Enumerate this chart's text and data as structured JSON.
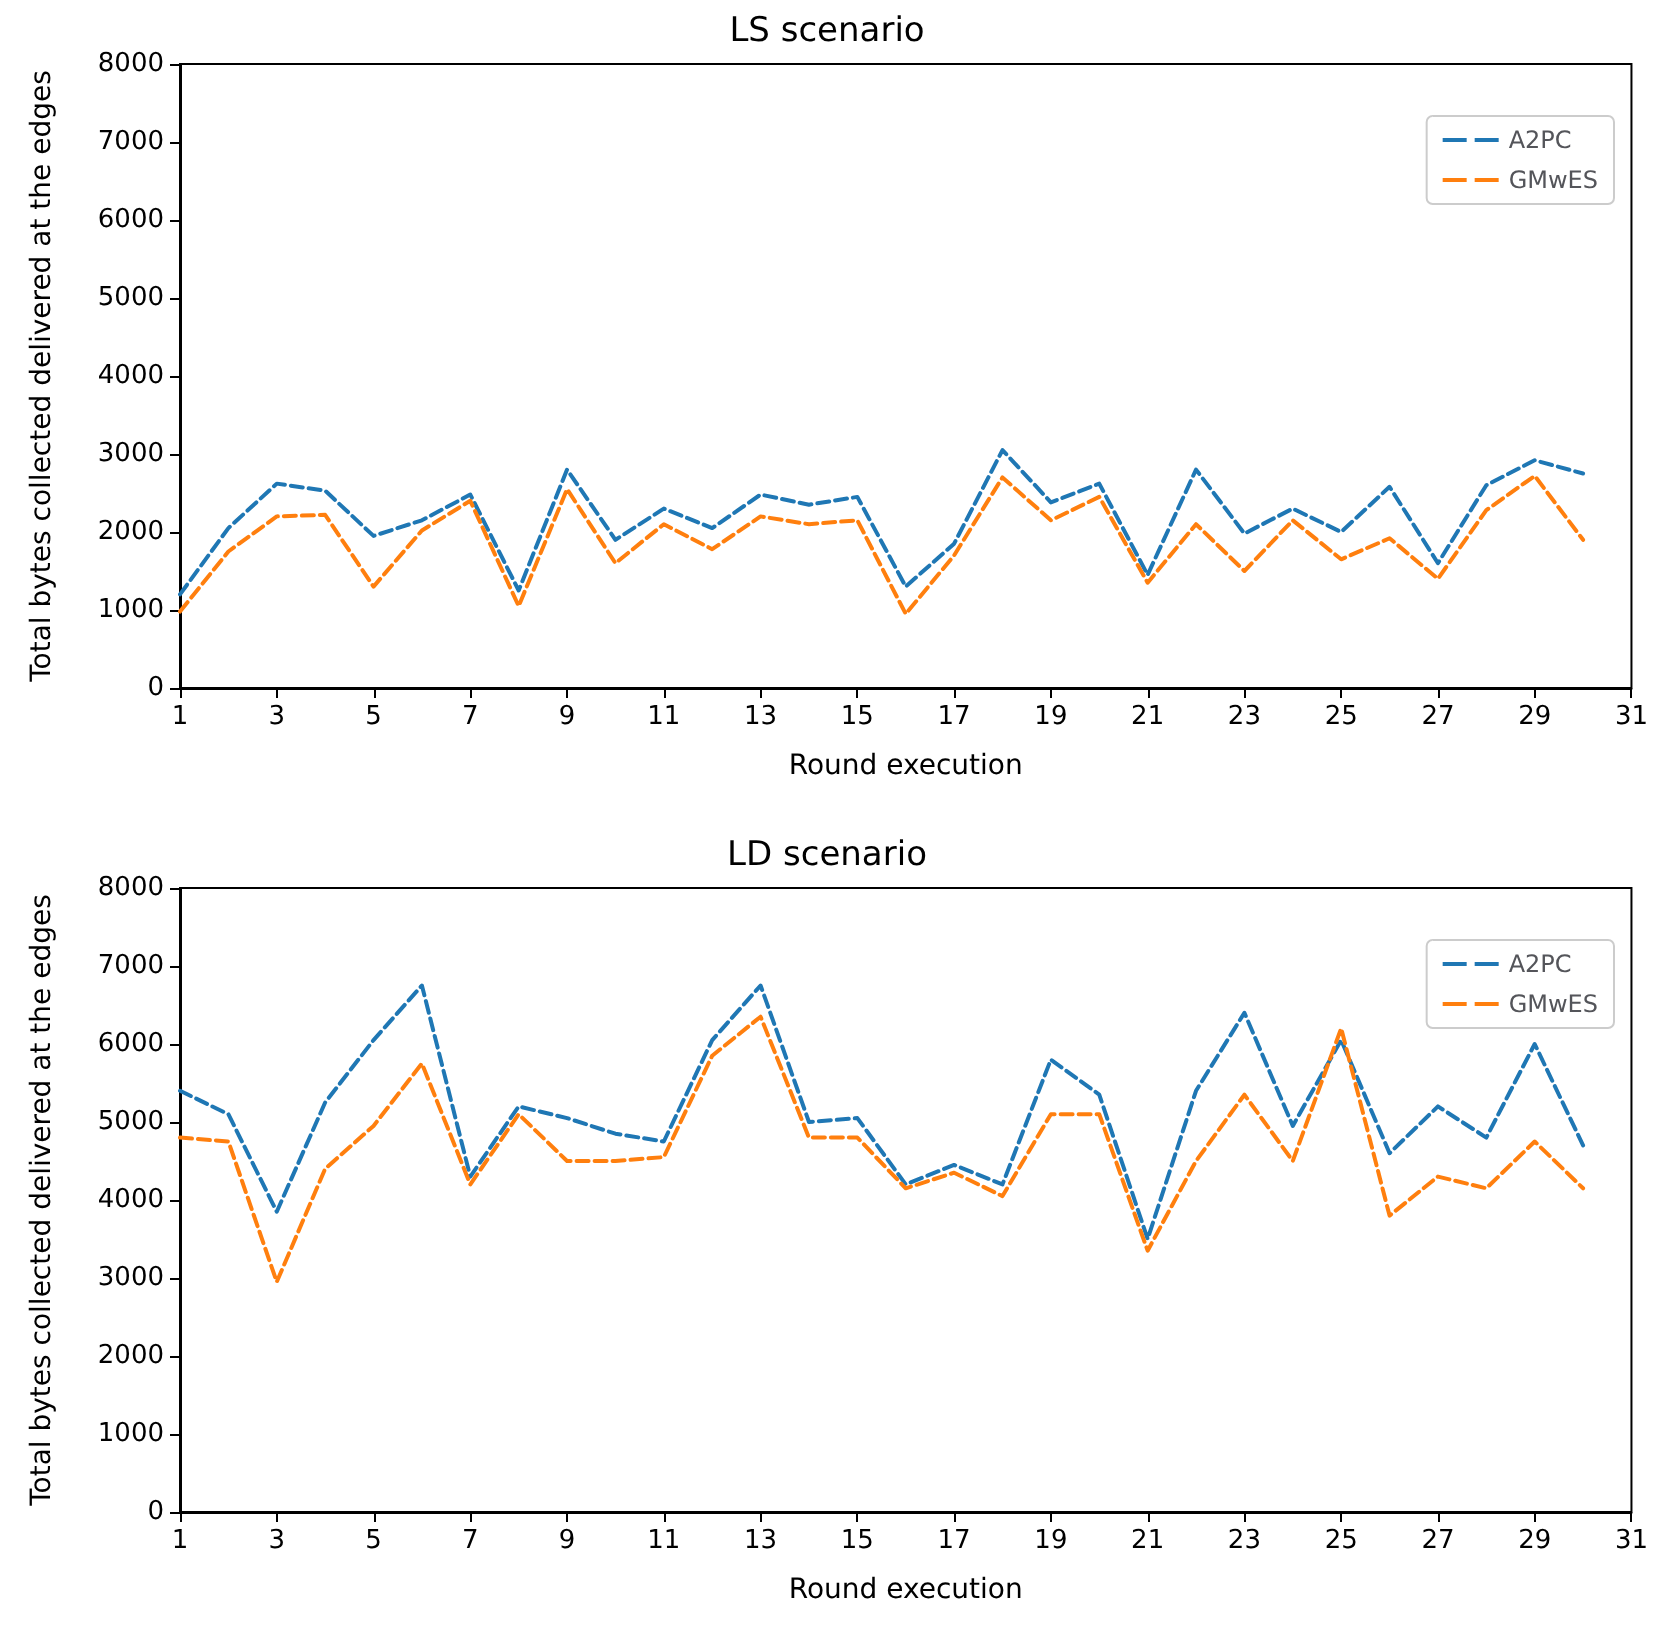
{
  "chart_data": [
    {
      "type": "line",
      "title": "LS scenario",
      "xlabel": "Round execution",
      "ylabel": "Total bytes collected delivered at the edges",
      "x": [
        1,
        2,
        3,
        4,
        5,
        6,
        7,
        8,
        9,
        10,
        11,
        12,
        13,
        14,
        15,
        16,
        17,
        18,
        19,
        20,
        21,
        22,
        23,
        24,
        25,
        26,
        27,
        28,
        29,
        30
      ],
      "xlim": [
        1,
        31
      ],
      "xticks": [
        1,
        3,
        5,
        7,
        9,
        11,
        13,
        15,
        17,
        19,
        21,
        23,
        25,
        27,
        29,
        31
      ],
      "ylim": [
        0,
        8000
      ],
      "yticks": [
        0,
        1000,
        2000,
        3000,
        4000,
        5000,
        6000,
        7000,
        8000
      ],
      "legend": "top right",
      "line_style": "dashed",
      "marker": "none",
      "grid": false,
      "series": [
        {
          "name": "A2PC",
          "color": "#1f77b4",
          "values": [
            1200,
            2050,
            2620,
            2530,
            1950,
            2150,
            2480,
            1250,
            2800,
            1900,
            2300,
            2050,
            2480,
            2350,
            2450,
            1300,
            1850,
            3050,
            2380,
            2620,
            1450,
            2800,
            1980,
            2300,
            2000,
            2580,
            1600,
            2600,
            2920,
            2750
          ]
        },
        {
          "name": "GMwES",
          "color": "#ff7f0e",
          "values": [
            980,
            1750,
            2200,
            2220,
            1300,
            2020,
            2400,
            1050,
            2550,
            1600,
            2100,
            1780,
            2200,
            2100,
            2150,
            950,
            1700,
            2700,
            2150,
            2450,
            1350,
            2100,
            1500,
            2150,
            1650,
            1920,
            1400,
            2280,
            2720,
            1900
          ]
        }
      ]
    },
    {
      "type": "line",
      "title": "LD scenario",
      "xlabel": "Round execution",
      "ylabel": "Total bytes collected delivered at the edges",
      "x": [
        1,
        2,
        3,
        4,
        5,
        6,
        7,
        8,
        9,
        10,
        11,
        12,
        13,
        14,
        15,
        16,
        17,
        18,
        19,
        20,
        21,
        22,
        23,
        24,
        25,
        26,
        27,
        28,
        29,
        30
      ],
      "xlim": [
        1,
        31
      ],
      "xticks": [
        1,
        3,
        5,
        7,
        9,
        11,
        13,
        15,
        17,
        19,
        21,
        23,
        25,
        27,
        29,
        31
      ],
      "ylim": [
        0,
        8000
      ],
      "yticks": [
        0,
        1000,
        2000,
        3000,
        4000,
        5000,
        6000,
        7000,
        8000
      ],
      "legend": "top right",
      "line_style": "dashed",
      "marker": "none",
      "grid": false,
      "series": [
        {
          "name": "A2PC",
          "color": "#1f77b4",
          "values": [
            5400,
            5100,
            3850,
            5250,
            6050,
            6750,
            4300,
            5200,
            5050,
            4850,
            4750,
            6050,
            6750,
            5000,
            5050,
            4200,
            4450,
            4200,
            5800,
            5350,
            3500,
            5400,
            6400,
            4950,
            6050,
            4600,
            5200,
            4800,
            6000,
            4700
          ]
        },
        {
          "name": "GMwES",
          "color": "#ff7f0e",
          "values": [
            4800,
            4750,
            2950,
            4400,
            4950,
            5750,
            4200,
            5100,
            4500,
            4500,
            4550,
            5850,
            6350,
            4800,
            4800,
            4150,
            4350,
            4050,
            5100,
            5100,
            3350,
            4500,
            5350,
            4500,
            6200,
            3800,
            4300,
            4150,
            4750,
            4150
          ]
        }
      ]
    }
  ]
}
